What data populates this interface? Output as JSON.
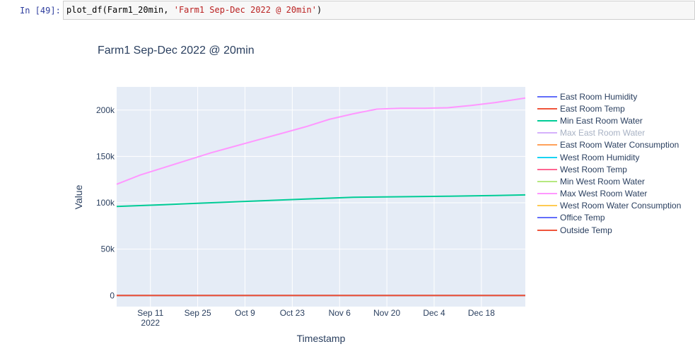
{
  "cell": {
    "prompt": "In [49]:",
    "code_prefix": "plot_df(Farm1_20min, ",
    "code_string": "'Farm1 Sep-Dec 2022 @ 20min'",
    "code_suffix": ")"
  },
  "chart_data": {
    "type": "line",
    "title": "Farm1 Sep-Dec 2022 @ 20min",
    "xlabel": "Timestamp",
    "ylabel": "Value",
    "x_ticks": [
      "Sep 11",
      "Sep 25",
      "Oct 9",
      "Oct 23",
      "Nov 6",
      "Nov 20",
      "Dec 4",
      "Dec 18"
    ],
    "x_tick_sub": "2022",
    "x_range": [
      "2022-09-01",
      "2022-12-31"
    ],
    "y_ticks": [
      0,
      50000,
      100000,
      150000,
      200000
    ],
    "y_tick_labels": [
      "0",
      "50k",
      "100k",
      "150k",
      "200k"
    ],
    "ylim": [
      -12000,
      225000
    ],
    "legend_position": "right",
    "grid": true,
    "plot_bgcolor": "#e5ecf6",
    "series": [
      {
        "name": "East Room Humidity",
        "color": "#636efa",
        "visible": true,
        "x": [
          "2022-09-01",
          "2022-12-31"
        ],
        "y": [
          0,
          0
        ]
      },
      {
        "name": "East Room Temp",
        "color": "#ef553b",
        "visible": true,
        "x": [
          "2022-09-01",
          "2022-12-31"
        ],
        "y": [
          0,
          0
        ]
      },
      {
        "name": "Min East Room Water",
        "color": "#00cc96",
        "visible": true,
        "x": [
          "2022-09-01",
          "2022-09-15",
          "2022-09-29",
          "2022-10-13",
          "2022-10-27",
          "2022-11-10",
          "2022-11-24",
          "2022-12-08",
          "2022-12-22",
          "2022-12-31"
        ],
        "y": [
          96000,
          98000,
          100000,
          102000,
          104000,
          106000,
          106500,
          107000,
          107800,
          108500
        ]
      },
      {
        "name": "Max East Room Water",
        "color": "#ab63fa",
        "visible": false,
        "x": [],
        "y": []
      },
      {
        "name": "East Room Water Consumption",
        "color": "#ffa15a",
        "visible": true,
        "x": [
          "2022-09-01",
          "2022-12-31"
        ],
        "y": [
          0,
          0
        ]
      },
      {
        "name": "West Room Humidity",
        "color": "#19d3f3",
        "visible": true,
        "x": [
          "2022-09-01",
          "2022-12-31"
        ],
        "y": [
          0,
          0
        ]
      },
      {
        "name": "West Room Temp",
        "color": "#ff6692",
        "visible": true,
        "x": [
          "2022-09-01",
          "2022-12-31"
        ],
        "y": [
          0,
          0
        ]
      },
      {
        "name": "Min West Room Water",
        "color": "#b6e880",
        "visible": true,
        "x": [
          "2022-09-01",
          "2022-12-31"
        ],
        "y": [
          0,
          0
        ]
      },
      {
        "name": "Max West Room Water",
        "color": "#ff97ff",
        "visible": true,
        "x": [
          "2022-09-01",
          "2022-09-08",
          "2022-09-15",
          "2022-09-22",
          "2022-09-29",
          "2022-10-06",
          "2022-10-13",
          "2022-10-20",
          "2022-10-27",
          "2022-11-03",
          "2022-11-10",
          "2022-11-17",
          "2022-11-24",
          "2022-12-01",
          "2022-12-08",
          "2022-12-15",
          "2022-12-22",
          "2022-12-31"
        ],
        "y": [
          120000,
          130000,
          138000,
          146000,
          154000,
          161000,
          168000,
          175000,
          182000,
          190000,
          196000,
          201000,
          202000,
          202000,
          202500,
          205000,
          208000,
          213000
        ]
      },
      {
        "name": "West Room Water Consumption",
        "color": "#fecb52",
        "visible": true,
        "x": [
          "2022-09-01",
          "2022-12-31"
        ],
        "y": [
          0,
          0
        ]
      },
      {
        "name": "Office Temp",
        "color": "#636efa",
        "visible": true,
        "x": [
          "2022-09-01",
          "2022-12-31"
        ],
        "y": [
          0,
          0
        ]
      },
      {
        "name": "Outside Temp",
        "color": "#ef553b",
        "visible": true,
        "x": [
          "2022-09-01",
          "2022-12-31"
        ],
        "y": [
          0,
          0
        ]
      }
    ]
  }
}
